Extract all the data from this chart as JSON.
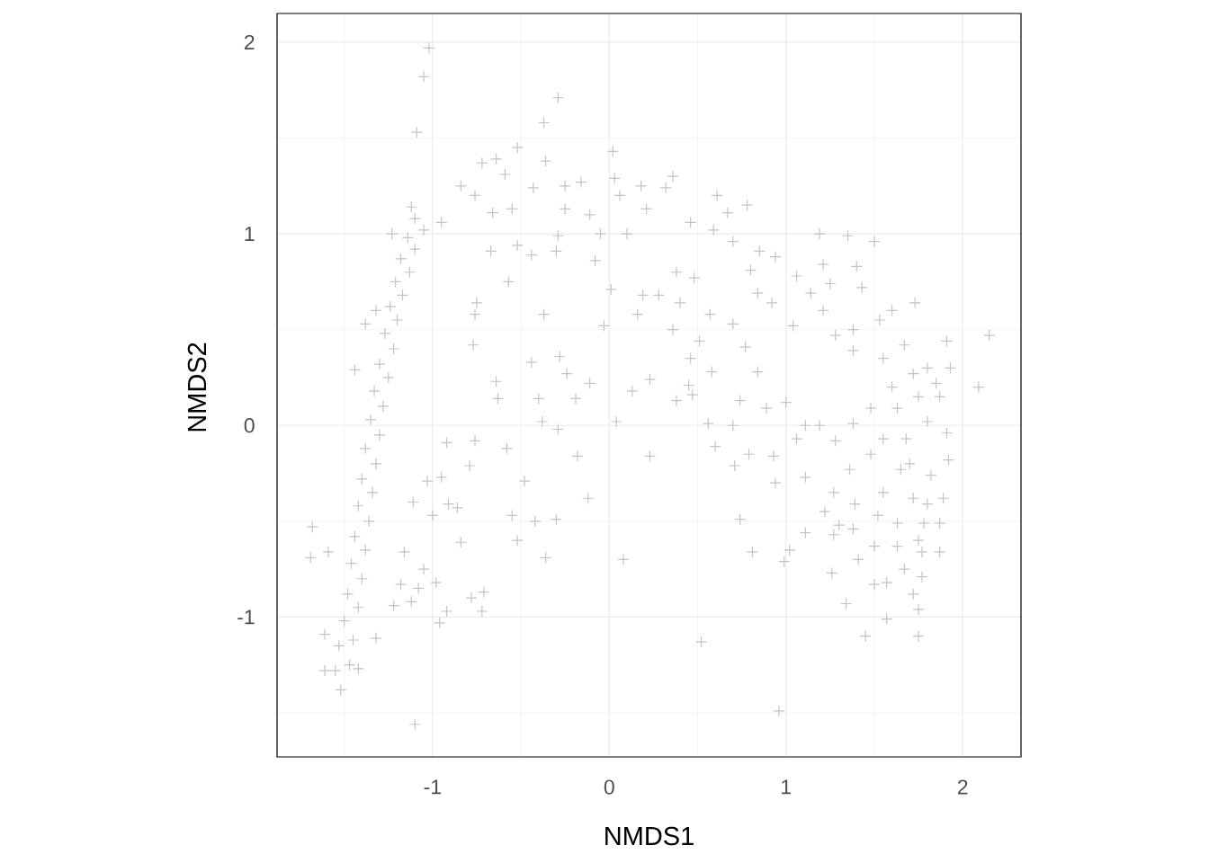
{
  "chart_data": {
    "type": "scatter",
    "xlabel": "NMDS1",
    "ylabel": "NMDS2",
    "x": [
      -1.52,
      -1.55,
      -1.47,
      -1.53,
      -1.45,
      -1.5,
      -1.42,
      -1.48,
      -1.4,
      -1.46,
      -1.38,
      -1.44,
      -1.36,
      -1.42,
      -1.34,
      -1.4,
      -1.32,
      -1.38,
      -1.3,
      -1.35,
      -1.28,
      -1.33,
      -1.25,
      -1.3,
      -1.22,
      -1.27,
      -1.2,
      -1.24,
      -1.17,
      -1.21,
      -1.13,
      -1.18,
      -1.1,
      -1.14,
      -1.05,
      -1.1,
      -0.95,
      -1.32,
      -1.44,
      -1.38,
      -1.23,
      -1.12,
      -1.02,
      -1.05,
      -1.09,
      -1.68,
      -1.69,
      -1.59,
      -1.61,
      -1.61,
      -1.42,
      -1.32,
      -1.1,
      -0.92,
      -0.76,
      -0.58,
      -0.18,
      -0.48,
      -0.12,
      -0.3,
      -0.55,
      -0.52,
      -0.36,
      0.08,
      -0.71,
      -0.78,
      -0.92,
      -0.96,
      -0.72,
      -0.98,
      -1.08,
      -1.12,
      -1.22,
      -0.84,
      -1.16,
      -1.05,
      -1.18,
      -1.0,
      -0.91,
      -0.86,
      -0.79,
      -0.95,
      -1.03,
      -1.11,
      -0.29,
      -0.38,
      0.04,
      -0.4,
      -0.19,
      -0.63,
      0.13,
      0.23,
      -0.42,
      -0.75,
      -0.76,
      -0.57,
      -0.37,
      -0.44,
      -0.28,
      -0.24,
      0.01,
      -0.03,
      0.19,
      0.16,
      -0.11,
      -0.64,
      -0.77,
      -0.67,
      -0.44,
      -0.29,
      -0.05,
      0.1,
      -0.25,
      -0.25,
      -0.36,
      -0.43,
      -0.52,
      -0.64,
      -0.72,
      -0.84,
      -0.76,
      -0.59,
      -0.66,
      -0.55,
      0.02,
      0.03,
      -0.16,
      0.18,
      -0.11,
      0.21,
      0.06,
      -0.08,
      -0.3,
      -0.52,
      -0.29,
      -0.37,
      0.36,
      0.32,
      0.61,
      0.78,
      0.67,
      0.46,
      0.59,
      0.7,
      0.85,
      1.19,
      1.35,
      1.5,
      1.4,
      0.8,
      0.94,
      1.06,
      1.21,
      1.25,
      1.43,
      1.14,
      1.21,
      1.73,
      1.6,
      1.53,
      1.38,
      1.28,
      1.91,
      1.67,
      1.55,
      1.38,
      1.93,
      1.72,
      1.04,
      0.92,
      0.84,
      0.38,
      0.48,
      0.28,
      0.4,
      0.57,
      0.7,
      0.36,
      0.51,
      0.77,
      0.46,
      0.58,
      0.84,
      0.23,
      0.45,
      2.15,
      2.09,
      1.19,
      1.28,
      1.38,
      1.48,
      1.55,
      1.63,
      1.75,
      1.87,
      1.91,
      1.92,
      1.8,
      1.68,
      1.48,
      1.36,
      1.65,
      1.82,
      1.89,
      1.55,
      1.72,
      1.8,
      1.52,
      1.63,
      1.78,
      1.87,
      1.5,
      1.63,
      1.77,
      1.67,
      1.77,
      1.72,
      1.75,
      1.57,
      1.5,
      1.57,
      1.45,
      1.75,
      1.87,
      1.41,
      1.26,
      1.34,
      1.27,
      1.38,
      1.3,
      1.11,
      1.22,
      1.39,
      1.27,
      1.11,
      0.94,
      1.02,
      0.99,
      0.81,
      0.74,
      0.71,
      0.6,
      0.79,
      0.93,
      1.06,
      1.11,
      0.38,
      0.56,
      0.7,
      0.74,
      0.89,
      1.0,
      0.47,
      0.96,
      0.52,
      1.8,
      1.85,
      1.6,
      1.7,
      1.75
    ],
    "values": [
      -1.38,
      -1.28,
      -1.25,
      -1.15,
      -1.12,
      -1.02,
      -0.95,
      -0.88,
      -0.8,
      -0.72,
      -0.65,
      -0.58,
      -0.5,
      -0.42,
      -0.35,
      -0.28,
      -0.2,
      -0.12,
      -0.05,
      0.03,
      0.1,
      0.18,
      0.25,
      0.32,
      0.4,
      0.48,
      0.55,
      0.62,
      0.68,
      0.75,
      0.8,
      0.87,
      0.92,
      0.98,
      1.02,
      1.08,
      1.06,
      0.6,
      0.29,
      0.53,
      1.0,
      1.14,
      1.97,
      1.82,
      1.53,
      -0.53,
      -0.69,
      -0.66,
      -1.09,
      -1.28,
      -1.27,
      -1.11,
      -1.56,
      -0.09,
      -0.08,
      -0.12,
      -0.16,
      -0.29,
      -0.38,
      -0.49,
      -0.47,
      -0.6,
      -0.69,
      -0.7,
      -0.87,
      -0.9,
      -0.97,
      -1.03,
      -0.97,
      -0.82,
      -0.85,
      -0.92,
      -0.94,
      -0.61,
      -0.66,
      -0.75,
      -0.83,
      -0.47,
      -0.41,
      -0.43,
      -0.21,
      -0.27,
      -0.29,
      -0.4,
      -0.02,
      0.02,
      0.02,
      0.14,
      0.14,
      0.14,
      0.18,
      -0.16,
      -0.5,
      0.64,
      0.58,
      0.75,
      0.58,
      0.33,
      0.36,
      0.27,
      0.71,
      0.52,
      0.68,
      0.58,
      0.22,
      0.23,
      0.42,
      0.91,
      0.89,
      0.99,
      1.0,
      1.0,
      1.13,
      1.25,
      1.38,
      1.24,
      1.45,
      1.39,
      1.37,
      1.25,
      1.2,
      1.31,
      1.11,
      1.13,
      1.43,
      1.29,
      1.27,
      1.25,
      1.1,
      1.13,
      1.2,
      0.86,
      0.91,
      0.94,
      1.71,
      1.58,
      1.3,
      1.24,
      1.2,
      1.15,
      1.11,
      1.06,
      1.02,
      0.96,
      0.91,
      1.0,
      0.99,
      0.96,
      0.83,
      0.81,
      0.88,
      0.78,
      0.84,
      0.74,
      0.72,
      0.69,
      0.6,
      0.64,
      0.6,
      0.55,
      0.5,
      0.47,
      0.44,
      0.42,
      0.35,
      0.39,
      0.3,
      0.27,
      0.52,
      0.64,
      0.69,
      0.8,
      0.77,
      0.68,
      0.64,
      0.58,
      0.53,
      0.5,
      0.44,
      0.41,
      0.35,
      0.28,
      0.28,
      0.24,
      0.21,
      0.47,
      0.2,
      0.0,
      -0.08,
      0.01,
      0.09,
      -0.07,
      0.09,
      0.15,
      0.15,
      -0.04,
      -0.18,
      0.02,
      -0.07,
      -0.15,
      -0.23,
      -0.23,
      -0.26,
      -0.38,
      -0.35,
      -0.38,
      -0.41,
      -0.47,
      -0.51,
      -0.51,
      -0.51,
      -0.63,
      -0.63,
      -0.66,
      -0.75,
      -0.79,
      -0.88,
      -0.96,
      -0.82,
      -0.83,
      -1.01,
      -1.1,
      -1.1,
      -0.66,
      -0.7,
      -0.77,
      -0.93,
      -0.57,
      -0.54,
      -0.52,
      -0.56,
      -0.45,
      -0.41,
      -0.35,
      -0.27,
      -0.3,
      -0.65,
      -0.71,
      -0.66,
      -0.49,
      -0.21,
      -0.11,
      -0.15,
      -0.16,
      -0.07,
      0.0,
      0.13,
      0.01,
      0.0,
      0.13,
      0.09,
      0.12,
      0.16,
      -1.49,
      -1.13,
      0.3,
      0.22,
      0.2,
      -0.2,
      -0.6
    ],
    "color": "#c4c4c4",
    "marker": "cross",
    "xlim": [
      -1.88,
      2.33
    ],
    "ylim": [
      -1.73,
      2.15
    ],
    "xticks": [
      {
        "value": -1.5,
        "label": null
      },
      -1,
      {
        "value": -0.5,
        "label": null
      },
      0,
      {
        "value": 0.5,
        "label": null
      },
      1,
      {
        "value": 1.5,
        "label": null
      },
      2
    ],
    "yticks": [
      {
        "value": -1.5,
        "label": null
      },
      -1,
      {
        "value": -0.5,
        "label": null
      },
      0,
      {
        "value": 0.5,
        "label": null
      },
      1,
      {
        "value": 1.5,
        "label": null
      },
      2
    ],
    "grid": true
  }
}
